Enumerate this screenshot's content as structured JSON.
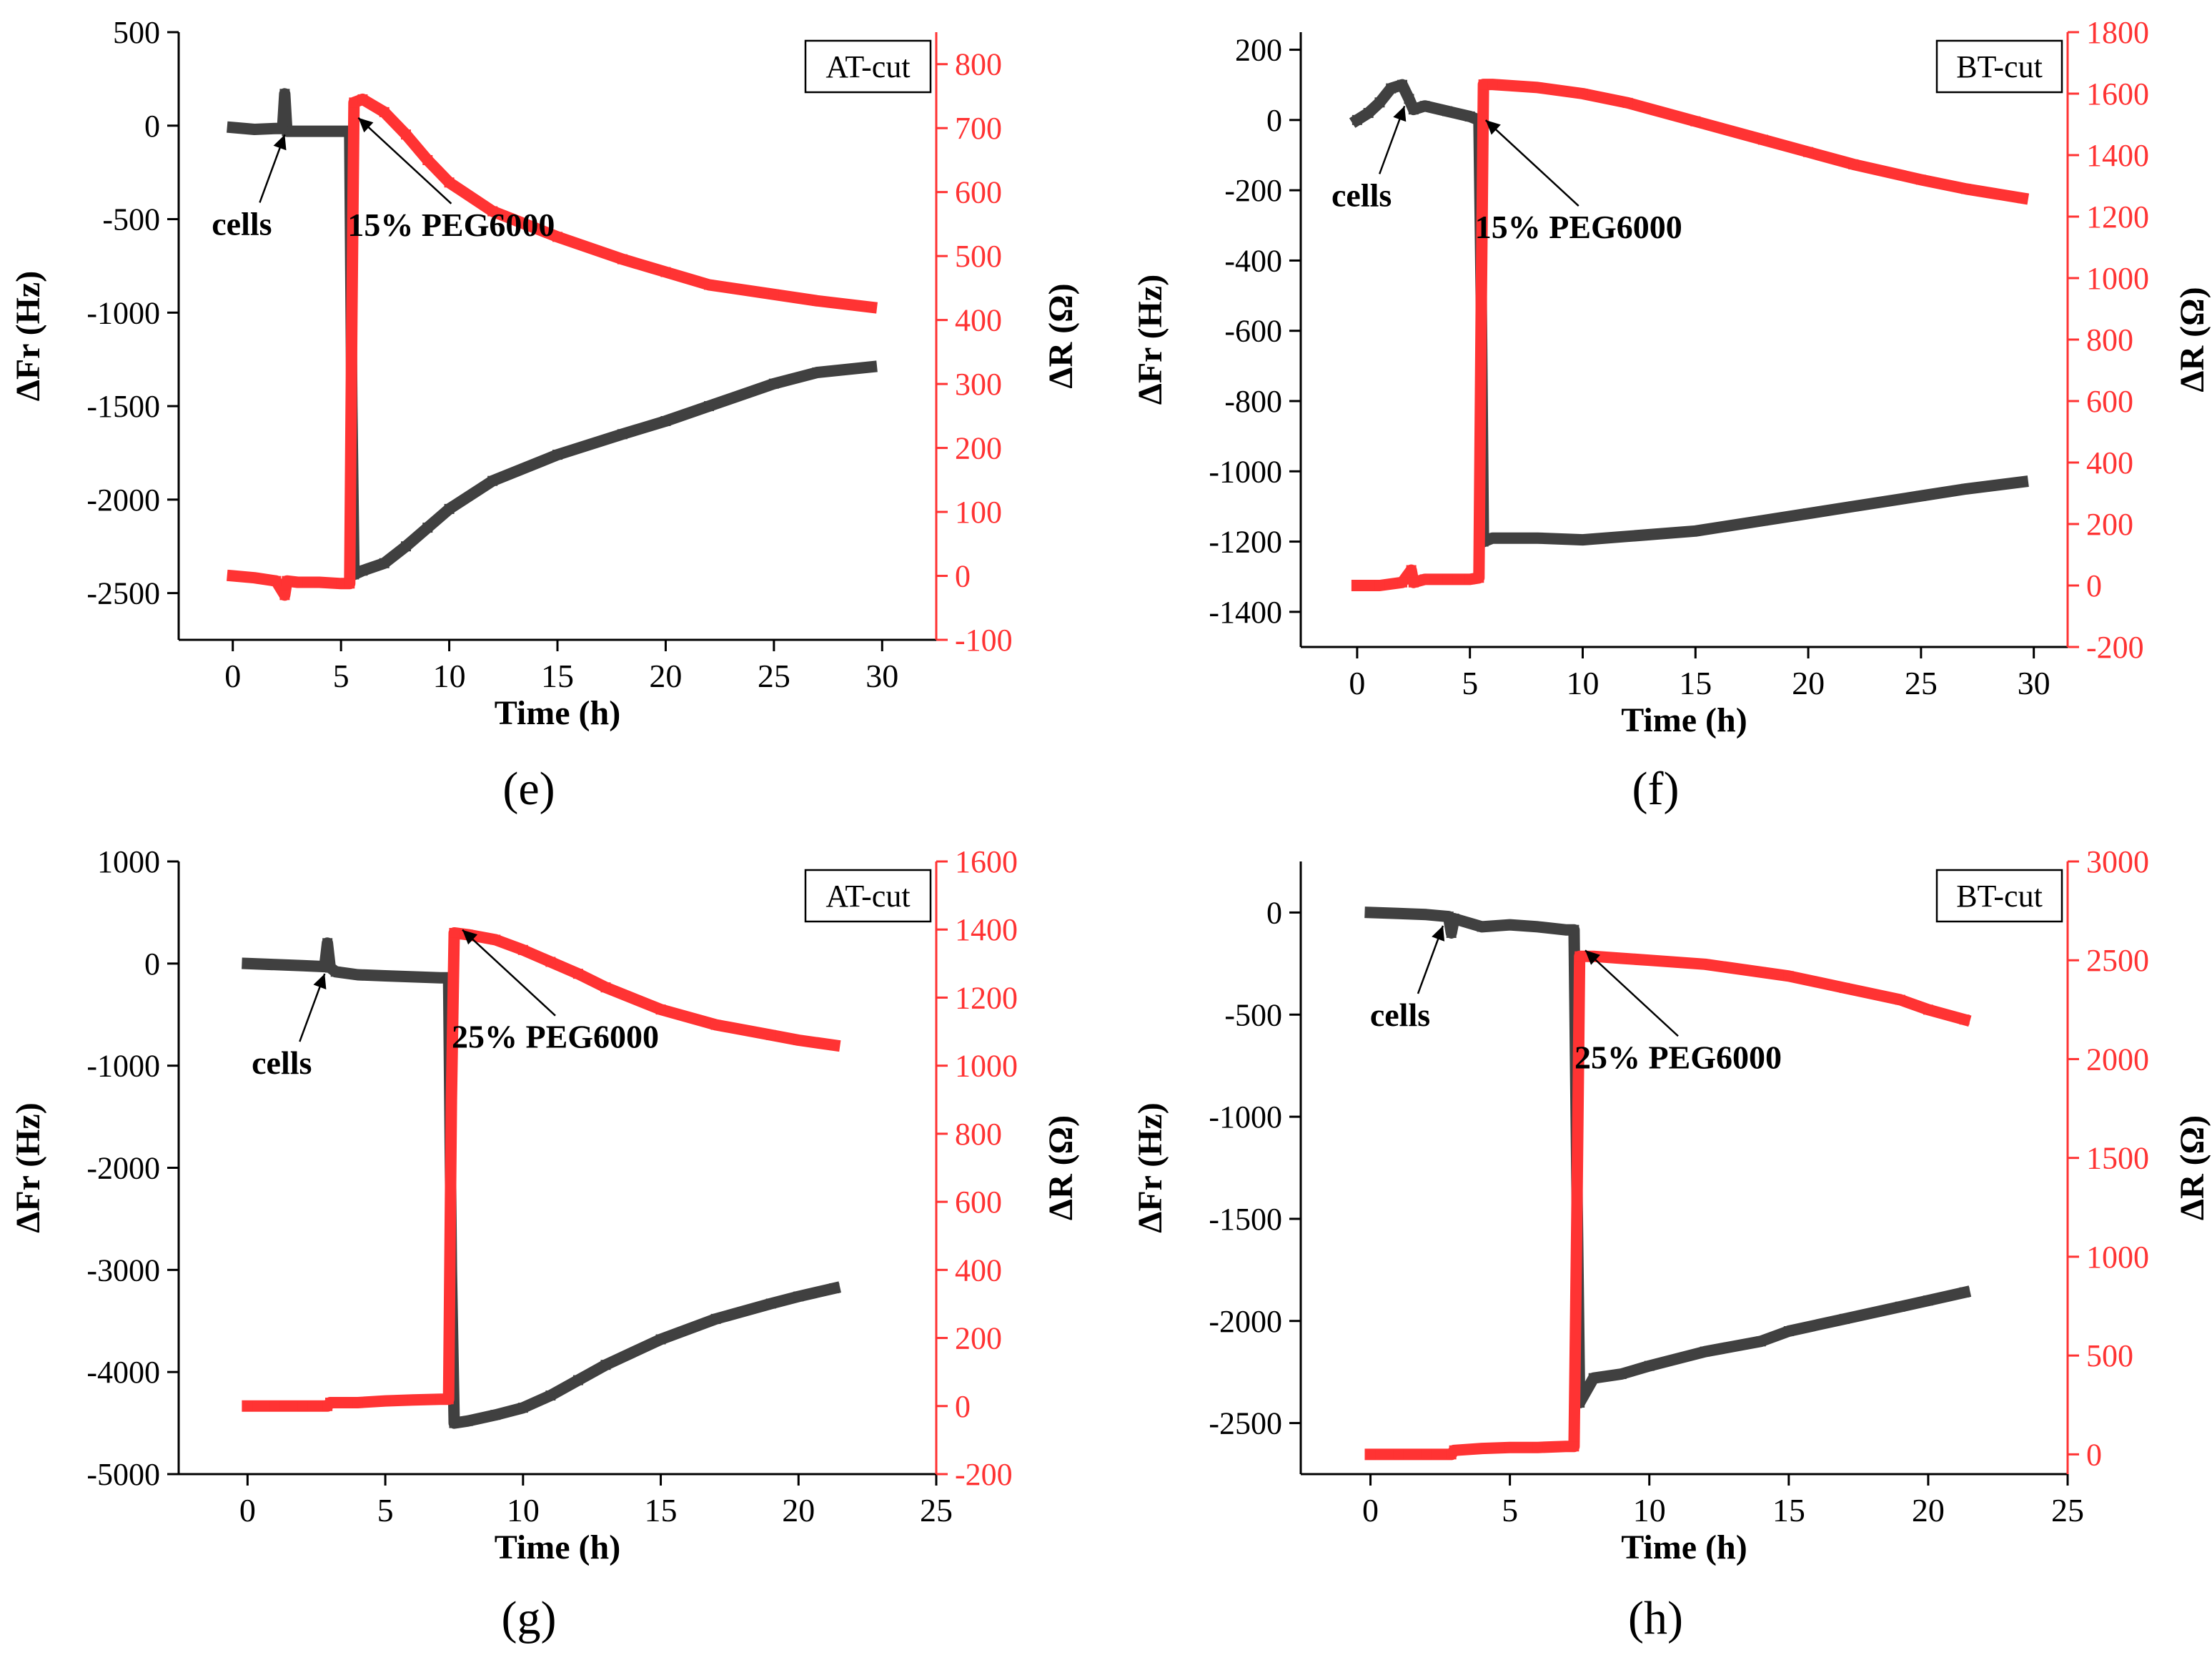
{
  "chart_data": [
    {
      "type": "line",
      "panel_label": "(e)",
      "cut_label": "AT-cut",
      "xlabel": "Time (h)",
      "ylabel_left": "ΔFr (Hz)",
      "ylabel_right": "ΔR (Ω)",
      "xlim": [
        -2.5,
        32.5
      ],
      "xticks": [
        0,
        5,
        10,
        15,
        20,
        25,
        30
      ],
      "ylim_left": [
        -2750,
        500
      ],
      "yticks_left": [
        500,
        0,
        -500,
        -1000,
        -1500,
        -2000,
        -2500
      ],
      "ylim_right": [
        -100,
        850
      ],
      "yticks_right": [
        800,
        700,
        600,
        500,
        400,
        300,
        200,
        100,
        0,
        -100
      ],
      "series": [
        {
          "axis": "left",
          "color": "#404040",
          "x": [
            0,
            1,
            2,
            2.3,
            2.4,
            2.5,
            3,
            4,
            5,
            5.4,
            5.5,
            5.6,
            6,
            7,
            8,
            9,
            10,
            12,
            15,
            18,
            20,
            22,
            25,
            27,
            29.5
          ],
          "y": [
            -10,
            -20,
            -15,
            -15,
            170,
            -30,
            -30,
            -30,
            -30,
            -30,
            -1500,
            -2400,
            -2380,
            -2340,
            -2250,
            -2150,
            -2050,
            -1900,
            -1760,
            -1650,
            -1580,
            -1500,
            -1380,
            -1320,
            -1290
          ]
        },
        {
          "axis": "right",
          "color": "#ff3333",
          "x": [
            0,
            1,
            2,
            2.4,
            2.5,
            3,
            4,
            5,
            5.4,
            5.5,
            5.6,
            6,
            7,
            8,
            9,
            10,
            12,
            15,
            18,
            20,
            22,
            25,
            27,
            29.5
          ],
          "y": [
            0,
            -3,
            -8,
            -30,
            -8,
            -10,
            -10,
            -12,
            -12,
            400,
            740,
            745,
            725,
            690,
            650,
            615,
            570,
            530,
            495,
            475,
            455,
            440,
            430,
            420
          ]
        }
      ],
      "annotations": [
        {
          "text": "cells",
          "x": 2.4,
          "y_left": -10
        },
        {
          "text": "15% PEG6000",
          "x": 5.8,
          "y_left": 80
        }
      ]
    },
    {
      "type": "line",
      "panel_label": "(f)",
      "cut_label": "BT-cut",
      "xlabel": "Time (h)",
      "ylabel_left": "ΔFr (Hz)",
      "ylabel_right": "ΔR (Ω)",
      "xlim": [
        -2.5,
        31.5
      ],
      "xticks": [
        0,
        5,
        10,
        15,
        20,
        25,
        30
      ],
      "ylim_left": [
        -1500,
        250
      ],
      "yticks_left": [
        200,
        0,
        -200,
        -400,
        -600,
        -800,
        -1000,
        -1200,
        -1400
      ],
      "ylim_right": [
        -200,
        1800
      ],
      "yticks_right": [
        1800,
        1600,
        1400,
        1200,
        1000,
        800,
        600,
        400,
        200,
        0,
        -200
      ],
      "series": [
        {
          "axis": "left",
          "color": "#404040",
          "x": [
            0,
            0.5,
            1,
            1.5,
            2,
            2.3,
            2.5,
            3,
            4,
            5,
            5.4,
            5.5,
            5.6,
            6,
            8,
            10,
            12,
            15,
            18,
            20,
            22,
            25,
            27,
            29.5
          ],
          "y": [
            0,
            20,
            50,
            90,
            100,
            60,
            30,
            40,
            25,
            10,
            0,
            -500,
            -1200,
            -1190,
            -1190,
            -1195,
            -1185,
            -1170,
            -1140,
            -1120,
            -1100,
            -1070,
            -1050,
            -1030
          ]
        },
        {
          "axis": "right",
          "color": "#ff3333",
          "x": [
            0,
            1,
            2,
            2.4,
            2.5,
            3,
            4,
            5,
            5.4,
            5.5,
            5.6,
            6,
            8,
            10,
            12,
            15,
            18,
            20,
            22,
            25,
            27,
            29.5
          ],
          "y": [
            0,
            0,
            10,
            50,
            10,
            20,
            20,
            20,
            25,
            900,
            1630,
            1630,
            1620,
            1600,
            1570,
            1510,
            1450,
            1410,
            1370,
            1320,
            1290,
            1260
          ]
        }
      ],
      "annotations": [
        {
          "text": "cells",
          "x": 2.1,
          "y_left": 60
        },
        {
          "text": "15% PEG6000",
          "x": 5.7,
          "y_left": 20
        }
      ]
    },
    {
      "type": "line",
      "panel_label": "(g)",
      "cut_label": "AT-cut",
      "xlabel": "Time (h)",
      "ylabel_left": "ΔFr (Hz)",
      "ylabel_right": "ΔR (Ω)",
      "xlim": [
        -2.5,
        25
      ],
      "xticks": [
        0,
        5,
        10,
        15,
        20,
        25
      ],
      "ylim_left": [
        -5000,
        1000
      ],
      "yticks_left": [
        1000,
        0,
        -1000,
        -2000,
        -3000,
        -4000,
        -5000
      ],
      "ylim_right": [
        -200,
        1600
      ],
      "yticks_right": [
        1600,
        1400,
        1200,
        1000,
        800,
        600,
        400,
        200,
        0,
        -200
      ],
      "series": [
        {
          "axis": "left",
          "color": "#404040",
          "x": [
            0,
            1,
            2,
            2.8,
            2.9,
            3.0,
            3.2,
            4,
            5,
            6,
            7,
            7.3,
            7.4,
            7.5,
            8,
            9,
            10,
            11,
            12,
            13,
            15,
            17,
            19,
            20,
            21.3
          ],
          "y": [
            0,
            -10,
            -20,
            -30,
            200,
            -40,
            -80,
            -110,
            -120,
            -130,
            -140,
            -140,
            -3000,
            -4500,
            -4480,
            -4420,
            -4350,
            -4230,
            -4080,
            -3930,
            -3680,
            -3480,
            -3330,
            -3260,
            -3180
          ]
        },
        {
          "axis": "right",
          "color": "#ff3333",
          "x": [
            0,
            1,
            2,
            2.9,
            3.0,
            4,
            5,
            6,
            7,
            7.3,
            7.4,
            7.5,
            8,
            9,
            10,
            11,
            12,
            13,
            15,
            17,
            19,
            20,
            21.3
          ],
          "y": [
            0,
            0,
            0,
            0,
            10,
            10,
            15,
            18,
            20,
            20,
            900,
            1390,
            1385,
            1370,
            1340,
            1305,
            1270,
            1230,
            1165,
            1120,
            1090,
            1075,
            1060
          ]
        }
      ],
      "annotations": [
        {
          "text": "cells",
          "x": 2.8,
          "y_left": -30
        },
        {
          "text": "25% PEG6000",
          "x": 7.8,
          "y_left": 400
        }
      ]
    },
    {
      "type": "line",
      "panel_label": "(h)",
      "cut_label": "BT-cut",
      "xlabel": "Time (h)",
      "ylabel_left": "ΔFr (Hz)",
      "ylabel_right": "ΔR (Ω)",
      "xlim": [
        -2.5,
        25
      ],
      "xticks": [
        0,
        5,
        10,
        15,
        20,
        25
      ],
      "ylim_left": [
        -2750,
        250
      ],
      "yticks_left": [
        0,
        -500,
        -1000,
        -1500,
        -2000,
        -2500
      ],
      "ylim_right": [
        -100,
        3000
      ],
      "yticks_right": [
        3000,
        2500,
        2000,
        1500,
        1000,
        500,
        0
      ],
      "series": [
        {
          "axis": "left",
          "color": "#404040",
          "x": [
            0,
            1,
            2,
            2.8,
            2.9,
            3.0,
            4,
            5,
            6,
            7,
            7.3,
            7.4,
            7.5,
            8,
            9,
            10,
            12,
            14,
            15,
            17,
            19,
            20,
            21.3
          ],
          "y": [
            0,
            -5,
            -10,
            -20,
            -100,
            -30,
            -70,
            -60,
            -70,
            -85,
            -85,
            -1300,
            -2400,
            -2280,
            -2260,
            -2220,
            -2150,
            -2100,
            -2050,
            -1990,
            -1930,
            -1900,
            -1860
          ]
        },
        {
          "axis": "right",
          "color": "#ff3333",
          "x": [
            0,
            1,
            2,
            2.9,
            3.0,
            4,
            5,
            6,
            7,
            7.3,
            7.4,
            7.5,
            8,
            9,
            10,
            12,
            14,
            15,
            17,
            19,
            20,
            21.3
          ],
          "y": [
            0,
            0,
            0,
            0,
            20,
            30,
            35,
            35,
            40,
            40,
            1200,
            2520,
            2520,
            2510,
            2500,
            2480,
            2440,
            2420,
            2360,
            2300,
            2250,
            2200
          ]
        }
      ],
      "annotations": [
        {
          "text": "cells",
          "x": 2.6,
          "y_left": -30
        },
        {
          "text": "25% PEG6000",
          "x": 7.7,
          "y_left": -150
        }
      ]
    }
  ]
}
